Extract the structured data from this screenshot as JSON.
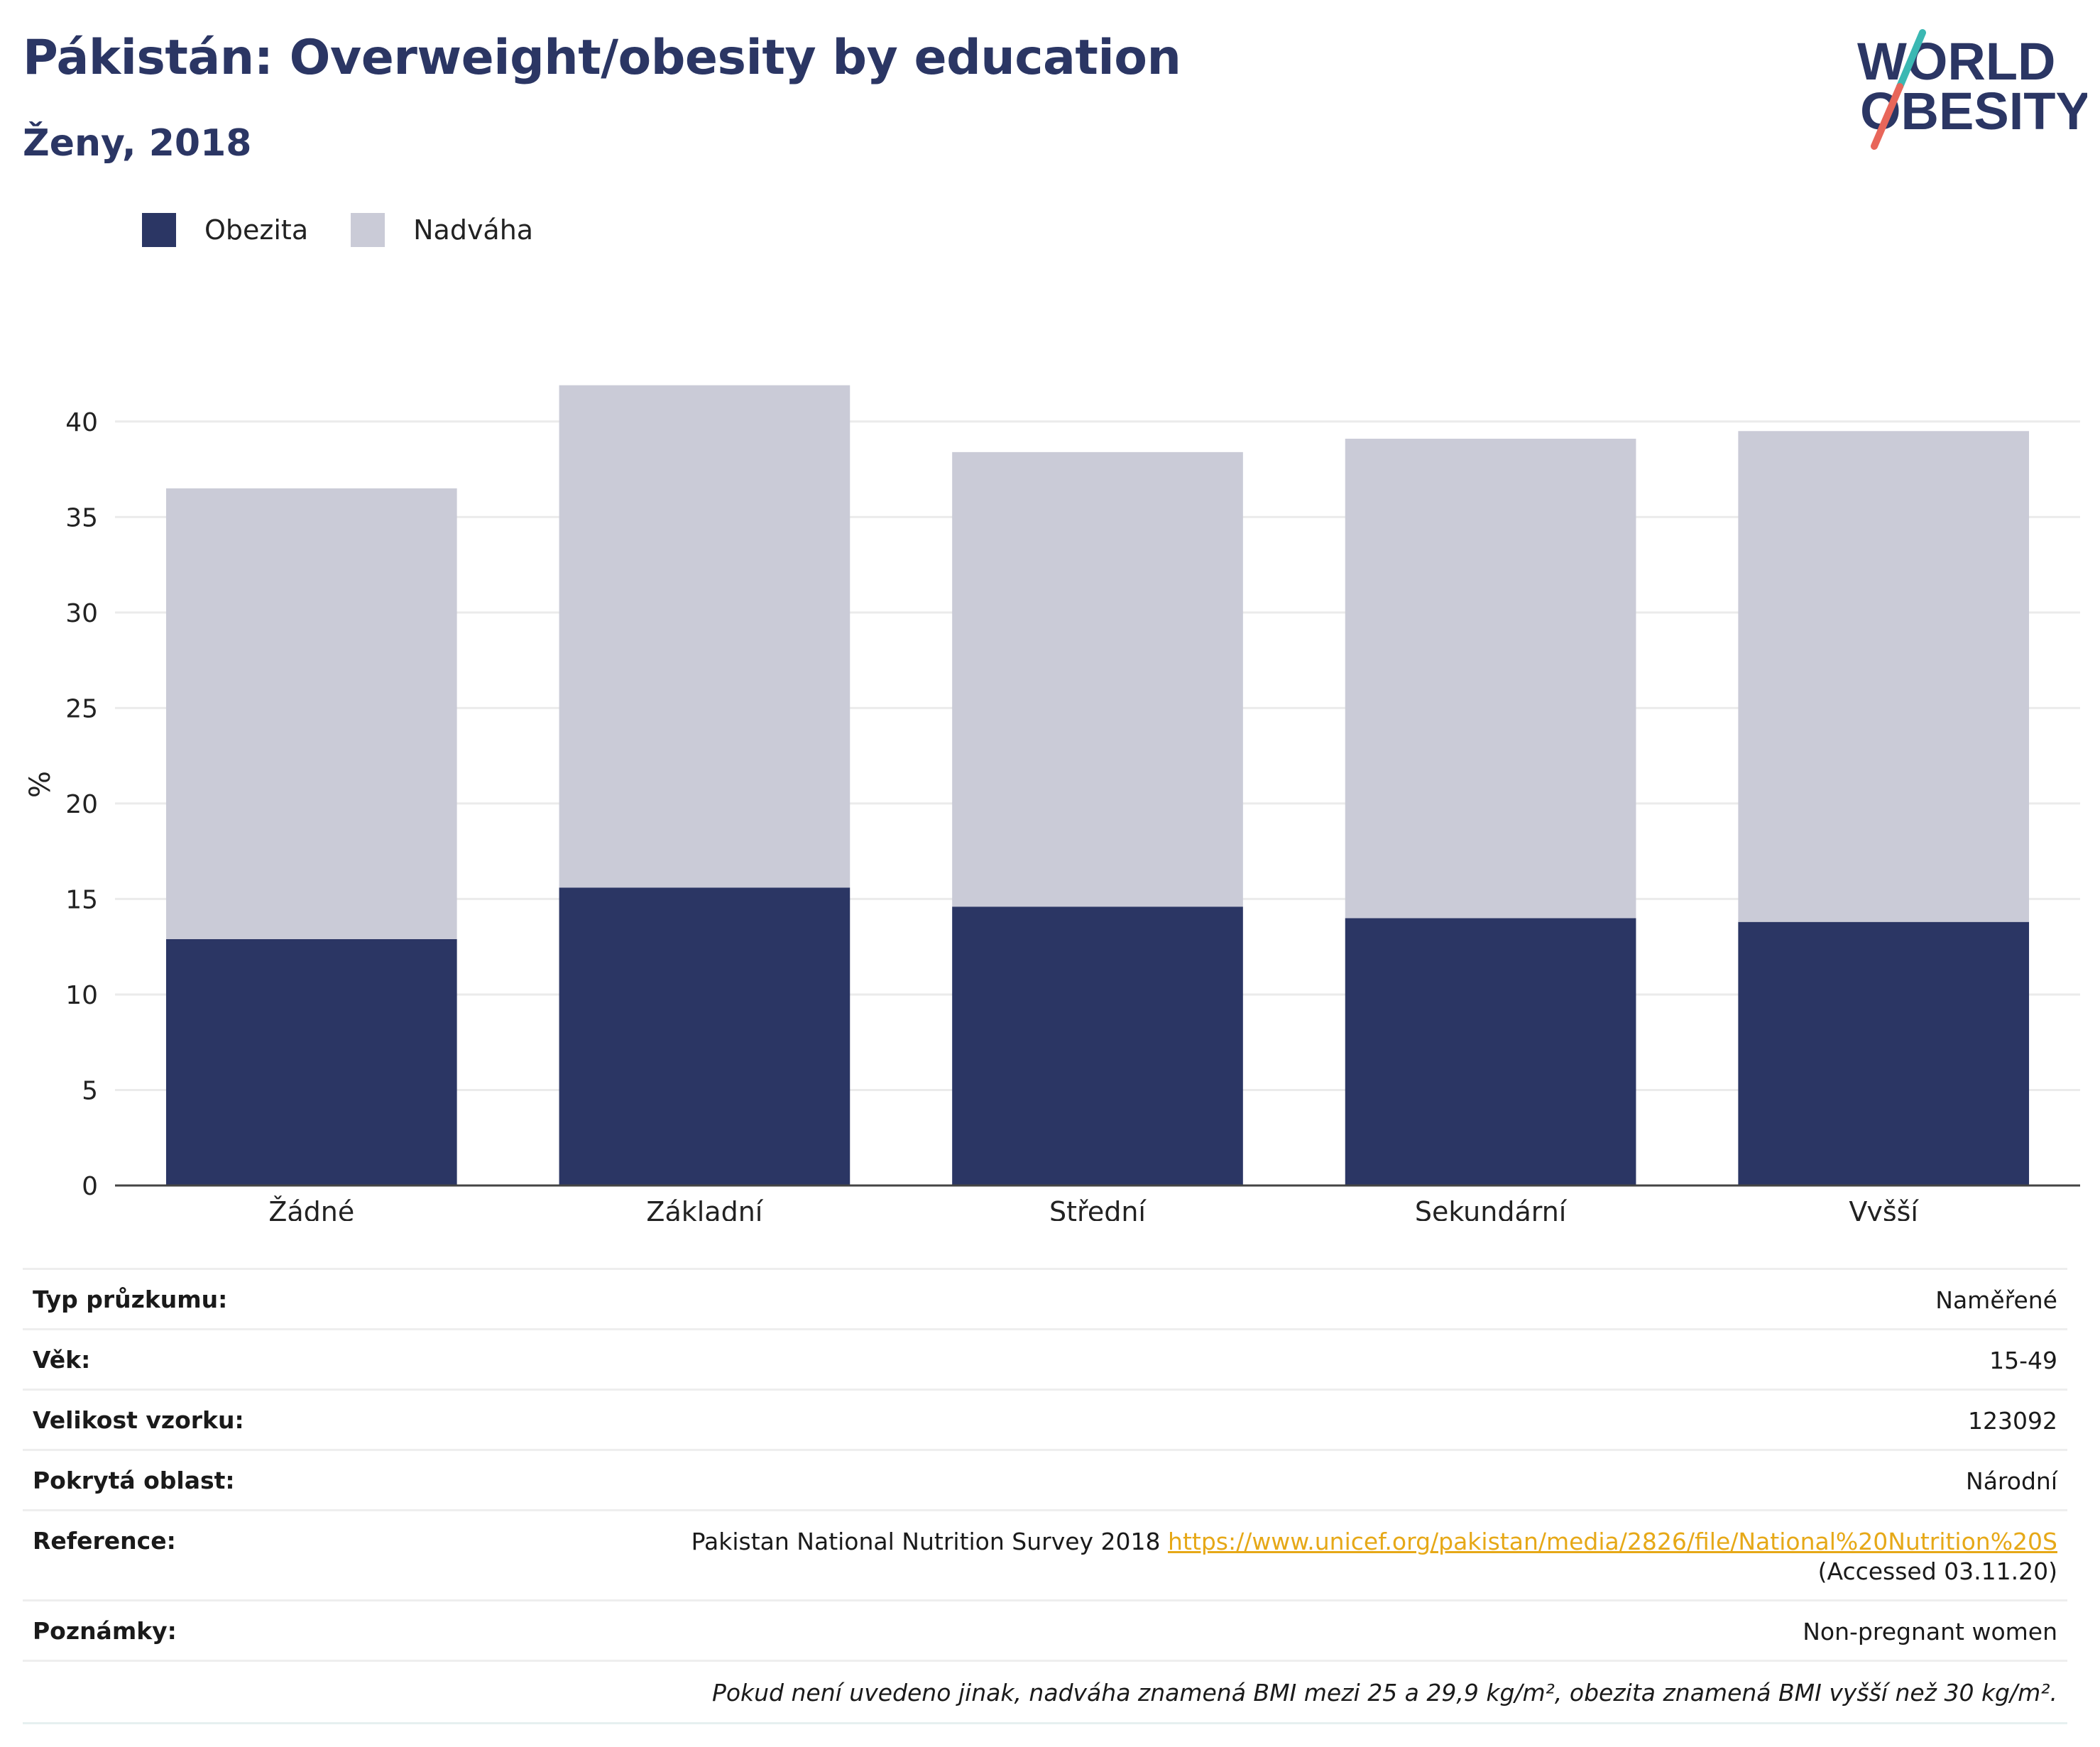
{
  "header": {
    "title": "Pákistán: Overweight/obesity by education",
    "subtitle": "Ženy, 2018"
  },
  "logo": {
    "line1": "WORLD",
    "line2": "OBESITY"
  },
  "colors": {
    "obesity": "#2b3664",
    "overweight": "#cacbd7",
    "accent_teal": "#3bb8b3",
    "accent_red": "#e8665a",
    "link": "#e6a817"
  },
  "legend": {
    "items": [
      {
        "label": "Obezita"
      },
      {
        "label": "Nadváha"
      }
    ]
  },
  "chart_data": {
    "type": "bar",
    "stacked": true,
    "categories": [
      "Žádné",
      "Základní",
      "Střední",
      "Sekundární",
      "Vyšší"
    ],
    "series": [
      {
        "name": "Obezita",
        "values": [
          12.9,
          15.6,
          14.6,
          14.0,
          13.8
        ]
      },
      {
        "name": "Nadváha",
        "values": [
          23.6,
          26.3,
          23.8,
          25.1,
          25.7
        ]
      }
    ],
    "totals": [
      36.5,
      41.9,
      38.4,
      39.1,
      39.5
    ],
    "ylabel": "%",
    "ylim": [
      0,
      42
    ],
    "yticks": [
      0,
      5,
      10,
      15,
      20,
      25,
      30,
      35,
      40
    ],
    "grid": true,
    "legend_position": "top-left"
  },
  "info": {
    "survey_type": {
      "label": "Typ průzkumu:",
      "value": "Naměřené"
    },
    "age": {
      "label": "Věk:",
      "value": "15-49"
    },
    "sample_size": {
      "label": "Velikost vzorku:",
      "value": "123092"
    },
    "coverage": {
      "label": "Pokrytá oblast:",
      "value": "Národní"
    },
    "reference": {
      "label": "Reference:",
      "text": "Pakistan National Nutrition Survey 2018",
      "link": "https://www.unicef.org/pakistan/media/2826/file/National%20Nutrition%20S",
      "suffix": "(Accessed 03.11.20)"
    },
    "notes": {
      "label": "Poznámky:",
      "value": "Non-pregnant women"
    },
    "footnote": "Pokud není uvedeno jinak, nadváha znamená BMI mezi 25 a 29,9 kg/m², obezita znamená BMI vyšší než 30 kg/m²."
  }
}
